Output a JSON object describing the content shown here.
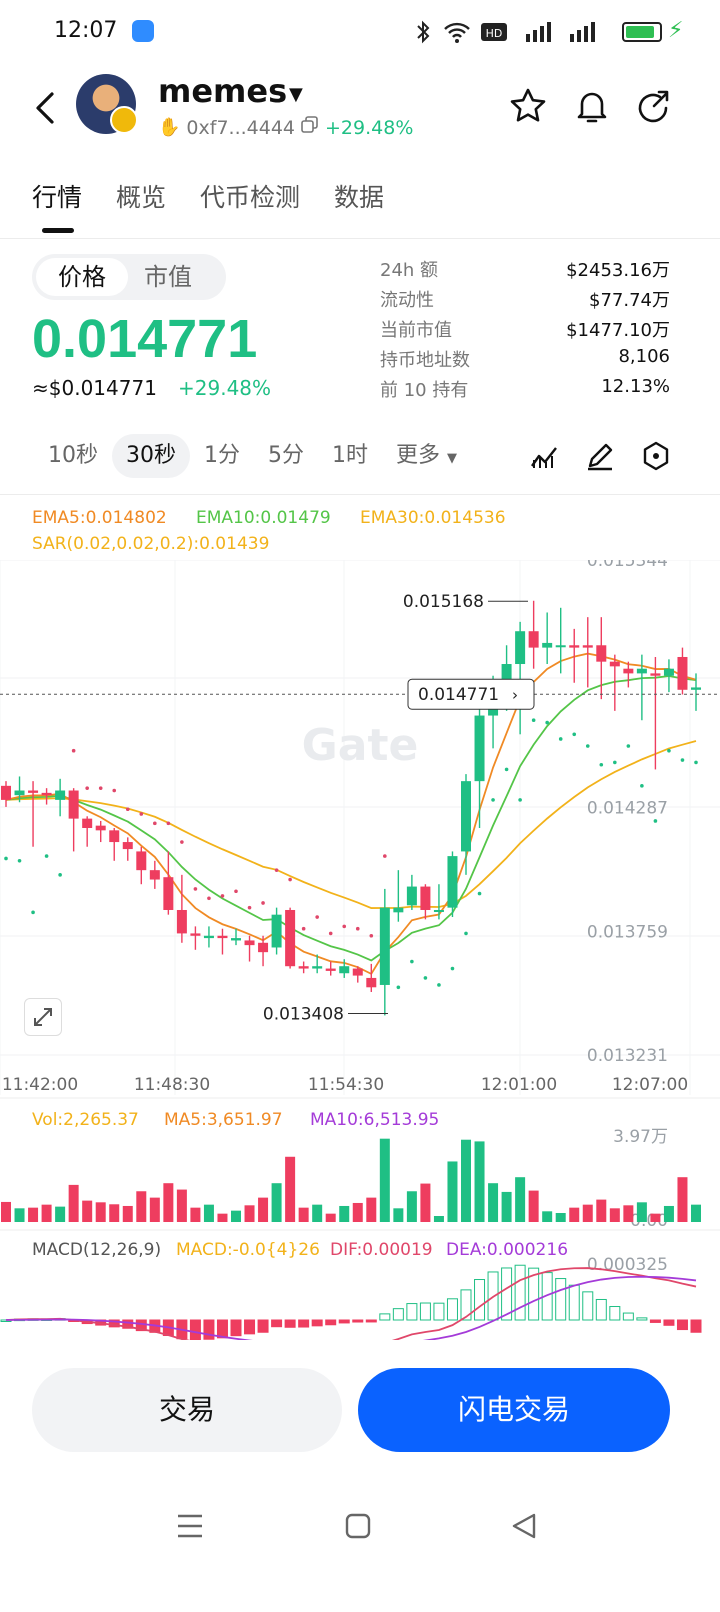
{
  "status_bar": {
    "time": "12:07"
  },
  "header": {
    "title": "memes",
    "address": "0xf7...4444",
    "change": "+29.48%"
  },
  "tabs": [
    "行情",
    "概览",
    "代币检测",
    "数据"
  ],
  "price": {
    "toggle": [
      "价格",
      "市值"
    ],
    "value": "0.014771",
    "usd": "≈$0.014771",
    "change": "+29.48%"
  },
  "stats": [
    {
      "label": "24h  额",
      "value": "$2453.16万"
    },
    {
      "label": "流动性",
      "value": "$77.74万"
    },
    {
      "label": "当前市值",
      "value": "$1477.10万"
    },
    {
      "label": "持币地址数",
      "value": "8,106"
    },
    {
      "label": "前 10 持有",
      "value": "12.13%"
    }
  ],
  "intervals": [
    "10秒",
    "30秒",
    "1分",
    "5分",
    "1时",
    "更多"
  ],
  "selected_interval": "30秒",
  "indicators": {
    "ema5": "EMA5:0.014802",
    "ema10": "EMA10:0.01479",
    "ema30": "EMA30:0.014536",
    "sar": "SAR(0.02,0.02,0.2):0.01439",
    "vol": "Vol:2,265.37",
    "ma5": "MA5:3,651.97",
    "ma10": "MA10:6,513.95",
    "macd_title": "MACD(12,26,9)",
    "macd": "MACD:-0.0{4}26",
    "dif": "DIF:0.00019",
    "dea": "DEA:0.000216"
  },
  "colors": {
    "up": "#1fbf84",
    "down": "#ee3d5f",
    "ema5": "#f08a24",
    "ema10": "#54c548",
    "ema30": "#f2b21a",
    "sar": "#e0476a",
    "accent": "#0a62ff"
  },
  "chart_data": {
    "type": "candlestick",
    "y_ticks": [
      "0.015344",
      "0.014287",
      "0.013759",
      "0.013231"
    ],
    "x_ticks": [
      "11:42:00",
      "11:48:30",
      "11:54:30",
      "12:01:00",
      "12:07:00"
    ],
    "ylim": [
      0.013231,
      0.015344
    ],
    "high_label": "0.015168",
    "low_label": "0.013408",
    "last_price": "0.014771",
    "candles": [
      {
        "o": 0.01438,
        "c": 0.01432,
        "h": 0.0144,
        "l": 0.01429
      },
      {
        "o": 0.01434,
        "c": 0.01436,
        "h": 0.01442,
        "l": 0.01431
      },
      {
        "o": 0.01436,
        "c": 0.01435,
        "h": 0.0144,
        "l": 0.01412
      },
      {
        "o": 0.01435,
        "c": 0.01434,
        "h": 0.01437,
        "l": 0.0143
      },
      {
        "o": 0.01432,
        "c": 0.01436,
        "h": 0.01441,
        "l": 0.01425
      },
      {
        "o": 0.01436,
        "c": 0.01424,
        "h": 0.01437,
        "l": 0.0141
      },
      {
        "o": 0.01424,
        "c": 0.0142,
        "h": 0.01425,
        "l": 0.01412
      },
      {
        "o": 0.01421,
        "c": 0.01419,
        "h": 0.01423,
        "l": 0.01414
      },
      {
        "o": 0.01419,
        "c": 0.01414,
        "h": 0.0142,
        "l": 0.01406
      },
      {
        "o": 0.01414,
        "c": 0.01411,
        "h": 0.01416,
        "l": 0.01406
      },
      {
        "o": 0.0141,
        "c": 0.01402,
        "h": 0.01412,
        "l": 0.01396
      },
      {
        "o": 0.01402,
        "c": 0.01398,
        "h": 0.01406,
        "l": 0.01394
      },
      {
        "o": 0.01399,
        "c": 0.01385,
        "h": 0.0141,
        "l": 0.01383
      },
      {
        "o": 0.01385,
        "c": 0.01375,
        "h": 0.014,
        "l": 0.01371
      },
      {
        "o": 0.01375,
        "c": 0.01374,
        "h": 0.01378,
        "l": 0.01368
      },
      {
        "o": 0.01373,
        "c": 0.01374,
        "h": 0.01378,
        "l": 0.01369
      },
      {
        "o": 0.01374,
        "c": 0.01373,
        "h": 0.01377,
        "l": 0.01366
      },
      {
        "o": 0.01372,
        "c": 0.01373,
        "h": 0.01377,
        "l": 0.0137
      },
      {
        "o": 0.01372,
        "c": 0.0137,
        "h": 0.01374,
        "l": 0.01363
      },
      {
        "o": 0.01371,
        "c": 0.01367,
        "h": 0.01374,
        "l": 0.01361
      },
      {
        "o": 0.01369,
        "c": 0.01383,
        "h": 0.01386,
        "l": 0.01366
      },
      {
        "o": 0.01385,
        "c": 0.01361,
        "h": 0.01386,
        "l": 0.0136
      },
      {
        "o": 0.01361,
        "c": 0.0136,
        "h": 0.01363,
        "l": 0.01358
      },
      {
        "o": 0.0136,
        "c": 0.01361,
        "h": 0.01366,
        "l": 0.01358
      },
      {
        "o": 0.0136,
        "c": 0.01359,
        "h": 0.01363,
        "l": 0.01357
      },
      {
        "o": 0.01358,
        "c": 0.01361,
        "h": 0.01364,
        "l": 0.01356
      },
      {
        "o": 0.0136,
        "c": 0.01357,
        "h": 0.01361,
        "l": 0.01354
      },
      {
        "o": 0.01356,
        "c": 0.01352,
        "h": 0.01362,
        "l": 0.0135
      },
      {
        "o": 0.01353,
        "c": 0.01386,
        "h": 0.01394,
        "l": 0.0134
      },
      {
        "o": 0.01384,
        "c": 0.01386,
        "h": 0.01402,
        "l": 0.0138
      },
      {
        "o": 0.01387,
        "c": 0.01395,
        "h": 0.014,
        "l": 0.01385
      },
      {
        "o": 0.01395,
        "c": 0.01385,
        "h": 0.01396,
        "l": 0.01381
      },
      {
        "o": 0.01385,
        "c": 0.01385,
        "h": 0.01396,
        "l": 0.01381
      },
      {
        "o": 0.01386,
        "c": 0.01408,
        "h": 0.0141,
        "l": 0.01382
      },
      {
        "o": 0.0141,
        "c": 0.0144,
        "h": 0.01443,
        "l": 0.014
      },
      {
        "o": 0.0144,
        "c": 0.01468,
        "h": 0.01473,
        "l": 0.0142
      },
      {
        "o": 0.01468,
        "c": 0.01482,
        "h": 0.01485,
        "l": 0.01454
      },
      {
        "o": 0.01481,
        "c": 0.0149,
        "h": 0.01498,
        "l": 0.0147
      },
      {
        "o": 0.0149,
        "c": 0.01504,
        "h": 0.01508,
        "l": 0.0146
      },
      {
        "o": 0.01504,
        "c": 0.01497,
        "h": 0.01517,
        "l": 0.01488
      },
      {
        "o": 0.01497,
        "c": 0.01499,
        "h": 0.01512,
        "l": 0.0149
      },
      {
        "o": 0.01498,
        "c": 0.01498,
        "h": 0.01514,
        "l": 0.01486
      },
      {
        "o": 0.01498,
        "c": 0.01497,
        "h": 0.01505,
        "l": 0.01482
      },
      {
        "o": 0.01498,
        "c": 0.01497,
        "h": 0.0151,
        "l": 0.0148
      },
      {
        "o": 0.01498,
        "c": 0.01491,
        "h": 0.0151,
        "l": 0.01475
      },
      {
        "o": 0.01491,
        "c": 0.01489,
        "h": 0.01494,
        "l": 0.0147
      },
      {
        "o": 0.01488,
        "c": 0.01486,
        "h": 0.01491,
        "l": 0.0148
      },
      {
        "o": 0.01486,
        "c": 0.01488,
        "h": 0.01494,
        "l": 0.01466
      },
      {
        "o": 0.01486,
        "c": 0.01485,
        "h": 0.01493,
        "l": 0.01445
      },
      {
        "o": 0.01485,
        "c": 0.01488,
        "h": 0.01492,
        "l": 0.01478
      },
      {
        "o": 0.01493,
        "c": 0.01479,
        "h": 0.01497,
        "l": 0.01477
      },
      {
        "o": 0.01479,
        "c": 0.0148,
        "h": 0.01486,
        "l": 0.0147
      }
    ]
  }
}
